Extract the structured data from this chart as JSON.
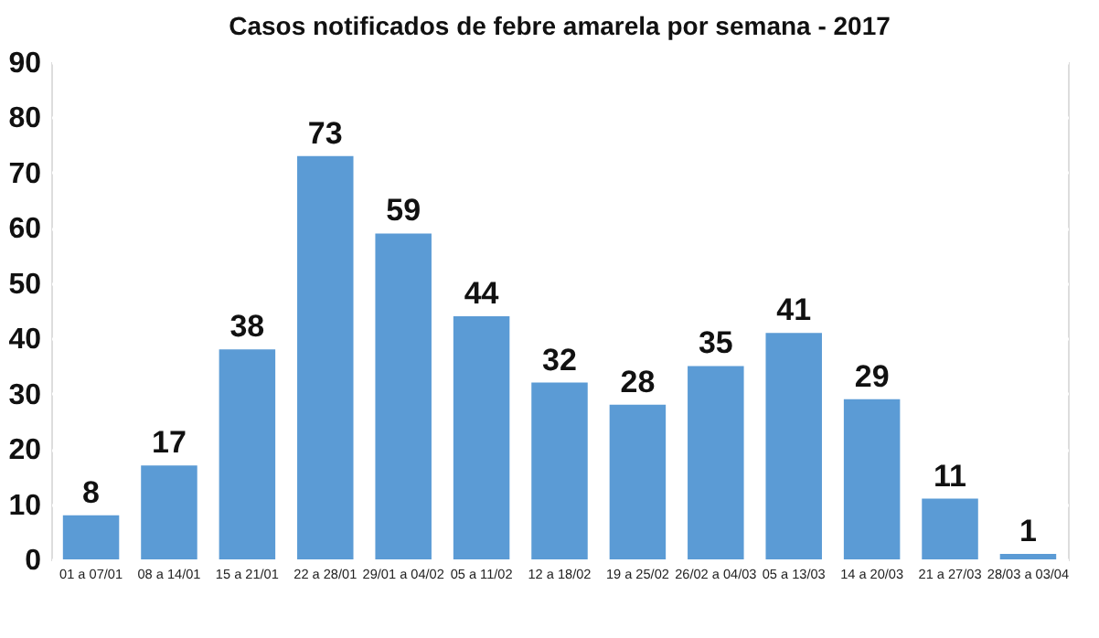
{
  "chart_data": {
    "type": "bar",
    "title": "Casos notificados de febre amarela por semana - 2017",
    "categories": [
      "01 a 07/01",
      "08 a 14/01",
      "15 a 21/01",
      "22 a 28/01",
      "29/01 a 04/02",
      "05 a 11/02",
      "12 a 18/02",
      "19 a 25/02",
      "26/02 a 04/03",
      "05 a 13/03",
      "14 a 20/03",
      "21 a 27/03",
      "28/03 a 03/04"
    ],
    "values": [
      8,
      17,
      38,
      73,
      59,
      44,
      32,
      28,
      35,
      41,
      29,
      11,
      1
    ],
    "color": "#5b9bd5",
    "ylim": [
      0,
      90
    ],
    "yticks": [
      0,
      10,
      20,
      30,
      40,
      50,
      60,
      70,
      80,
      90
    ],
    "grid": true,
    "data_labels": true
  }
}
